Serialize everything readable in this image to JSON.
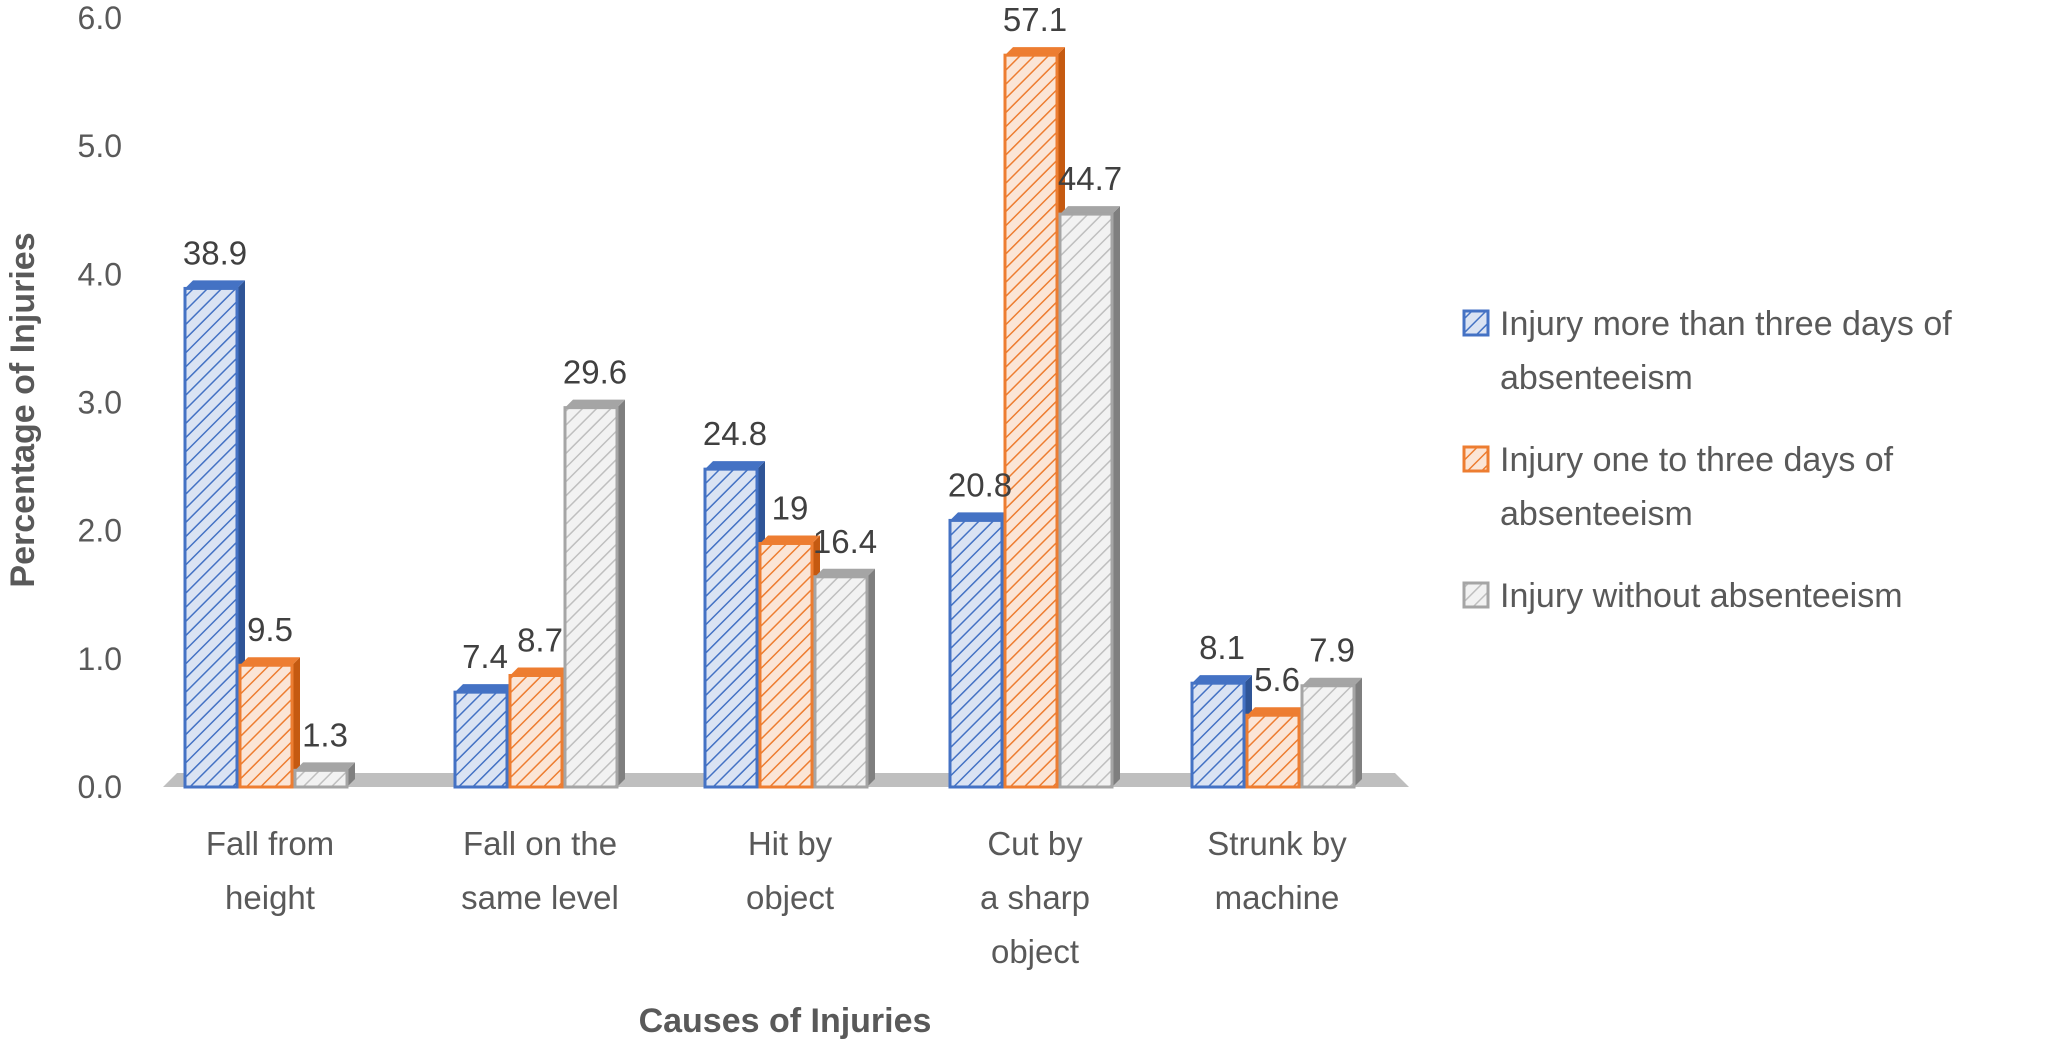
{
  "chart_data": {
    "type": "bar",
    "xlabel": "Causes of Injuries",
    "ylabel": "Percentage of Injuries",
    "ylim": [
      0,
      6
    ],
    "yticks": [
      "0.0",
      "1.0",
      "2.0",
      "3.0",
      "4.0",
      "5.0",
      "6.0"
    ],
    "grid": false,
    "legend_position": "right",
    "categories": [
      [
        "Fall from",
        "height"
      ],
      [
        "Fall on the",
        "same level"
      ],
      [
        "Hit by",
        "object"
      ],
      [
        "Cut by",
        "a sharp",
        "object"
      ],
      [
        "Strunk by",
        "machine"
      ]
    ],
    "series": [
      {
        "name": "Injury more than three days of absenteeism",
        "legend_lines": [
          "Injury more than three days of",
          "absenteeism"
        ],
        "color": "#4472C4",
        "values": [
          3.89,
          0.74,
          2.48,
          2.08,
          0.81
        ],
        "labels": [
          "38.9",
          "7.4",
          "24.8",
          "20.8",
          "8.1"
        ]
      },
      {
        "name": "Injury one to three days of absenteeism",
        "legend_lines": [
          "Injury one to three days of",
          "absenteeism"
        ],
        "color": "#ED7D31",
        "values": [
          0.95,
          0.87,
          1.9,
          5.71,
          0.56
        ],
        "labels": [
          "9.5",
          "8.7",
          "19",
          "57.1",
          "5.6"
        ]
      },
      {
        "name": "Injury without absenteeism",
        "legend_lines": [
          "Injury without absenteeism"
        ],
        "color": "#A5A5A5",
        "values": [
          0.13,
          2.96,
          1.64,
          4.47,
          0.79
        ],
        "labels": [
          "1.3",
          "29.6",
          "16.4",
          "44.7",
          "7.9"
        ]
      }
    ]
  }
}
